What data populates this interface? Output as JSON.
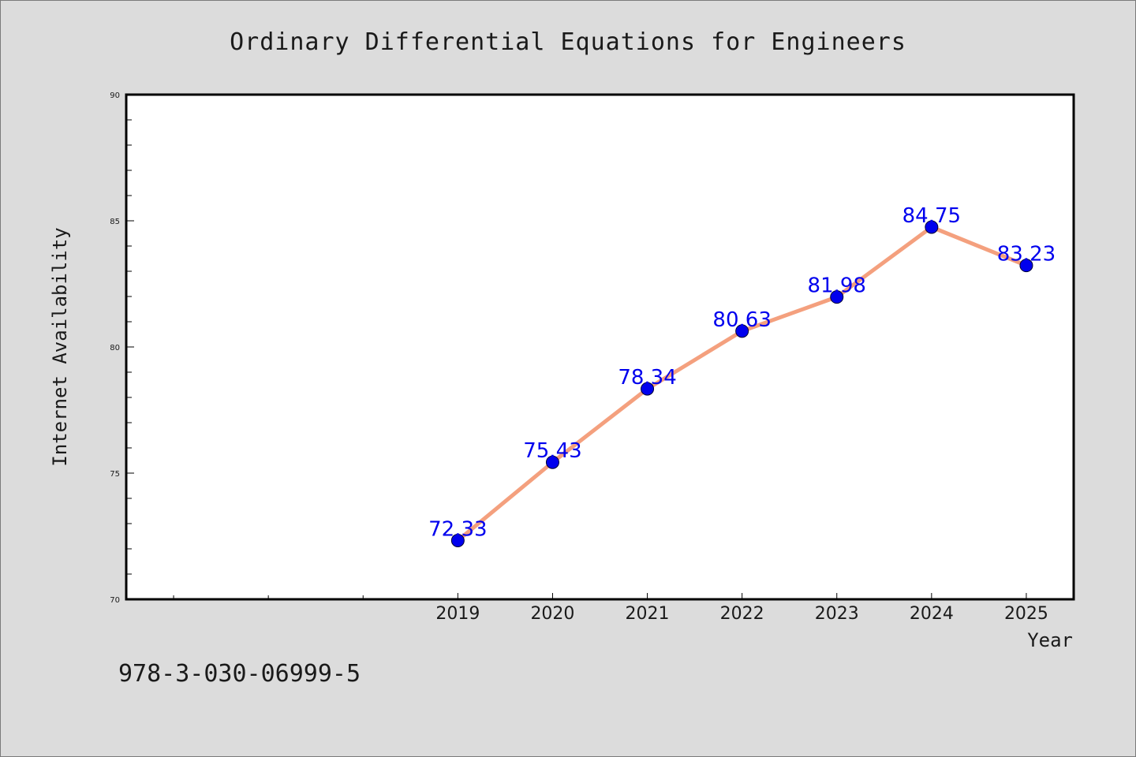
{
  "chart_data": {
    "type": "line",
    "title": "Ordinary Differential Equations for Engineers",
    "xlabel": "Year",
    "ylabel": "Internet Availability",
    "x": [
      "2019",
      "2020",
      "2021",
      "2022",
      "2023",
      "2024",
      "2025"
    ],
    "xlim": [
      2015.5,
      2025.5
    ],
    "values": [
      72.33,
      75.43,
      78.34,
      80.63,
      81.98,
      84.75,
      83.23
    ],
    "data_labels": [
      "72.33",
      "75.43",
      "78.34",
      "80.63",
      "81.98",
      "84.75",
      "83.23"
    ],
    "ylim": [
      70,
      90
    ],
    "yticks": [
      70,
      75,
      80,
      85,
      90
    ],
    "grid": false,
    "line_color": "#f4a07e",
    "marker_color": "#0000ee",
    "label_color": "#0000ee",
    "plot_background": "#ffffff",
    "figure_background": "#dcdcdc"
  },
  "footer": {
    "isbn": "978-3-030-06999-5"
  }
}
